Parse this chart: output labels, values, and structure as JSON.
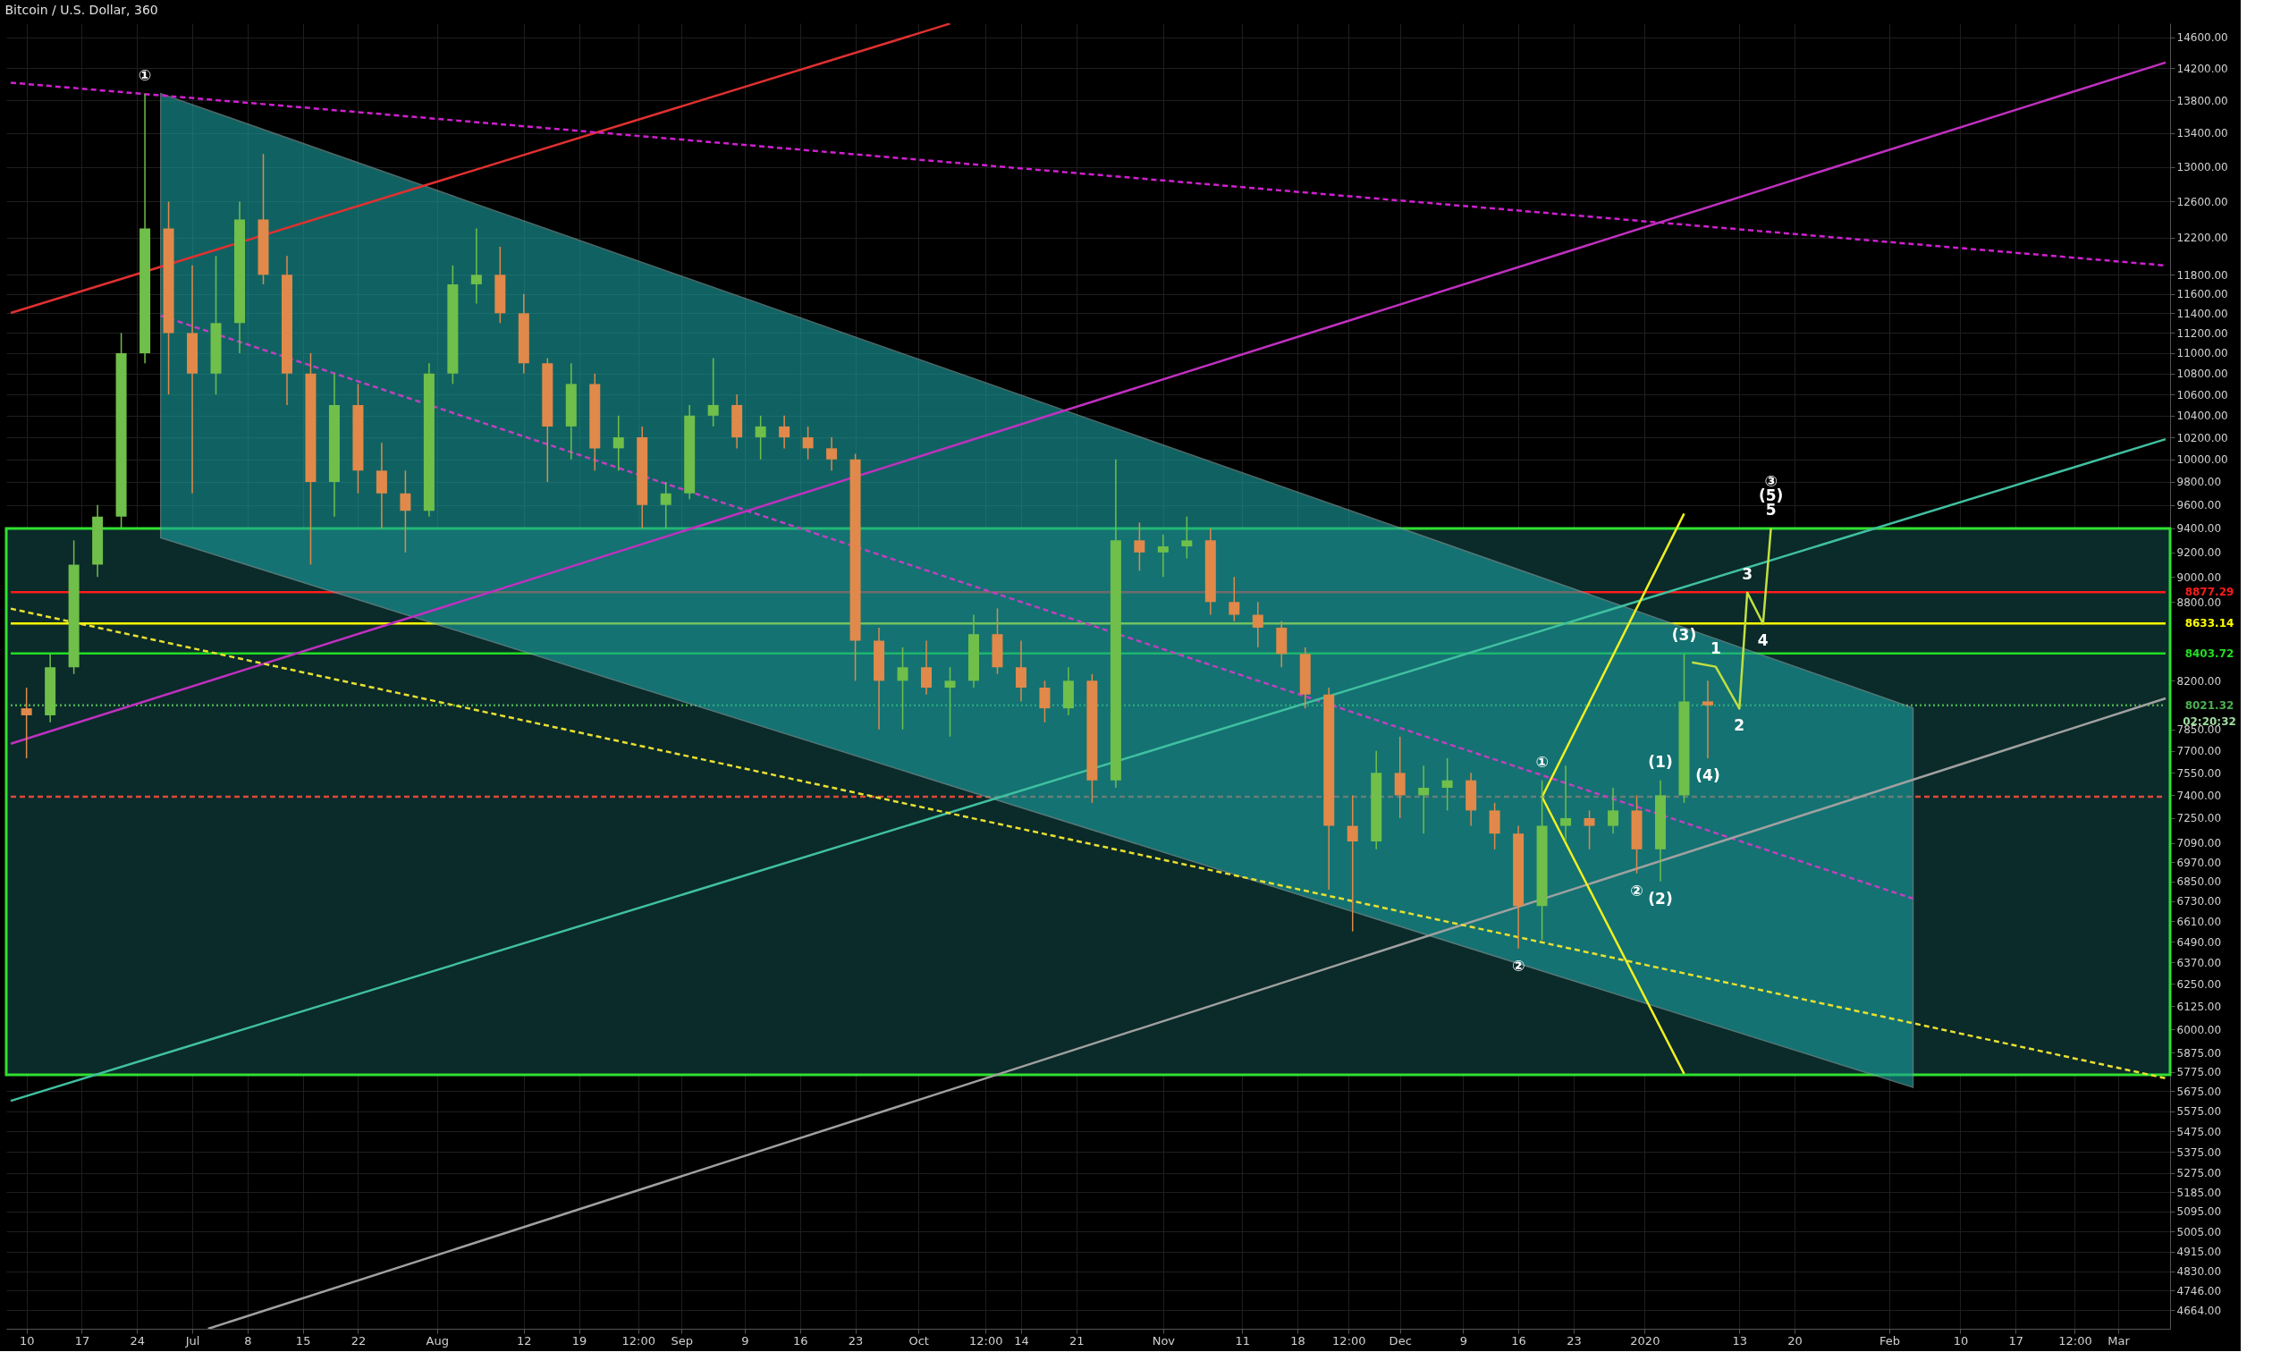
{
  "chart_data": {
    "type": "candlestick",
    "title": "Bitcoin / U.S. Dollar, 360",
    "x": [
      "2019-06-10",
      "2019-06-13",
      "2019-06-16",
      "2019-06-19",
      "2019-06-22",
      "2019-06-25",
      "2019-06-28",
      "2019-07-01",
      "2019-07-04",
      "2019-07-07",
      "2019-07-10",
      "2019-07-13",
      "2019-07-16",
      "2019-07-19",
      "2019-07-22",
      "2019-07-25",
      "2019-07-28",
      "2019-07-31",
      "2019-08-03",
      "2019-08-06",
      "2019-08-09",
      "2019-08-12",
      "2019-08-15",
      "2019-08-18",
      "2019-08-21",
      "2019-08-24",
      "2019-08-27",
      "2019-08-30",
      "2019-09-02",
      "2019-09-05",
      "2019-09-08",
      "2019-09-11",
      "2019-09-14",
      "2019-09-17",
      "2019-09-20",
      "2019-09-23",
      "2019-09-26",
      "2019-09-29",
      "2019-10-02",
      "2019-10-05",
      "2019-10-08",
      "2019-10-11",
      "2019-10-14",
      "2019-10-17",
      "2019-10-20",
      "2019-10-23",
      "2019-10-26",
      "2019-10-29",
      "2019-11-01",
      "2019-11-04",
      "2019-11-07",
      "2019-11-10",
      "2019-11-13",
      "2019-11-16",
      "2019-11-19",
      "2019-11-22",
      "2019-11-25",
      "2019-11-28",
      "2019-12-01",
      "2019-12-04",
      "2019-12-07",
      "2019-12-10",
      "2019-12-13",
      "2019-12-16",
      "2019-12-19",
      "2019-12-22",
      "2019-12-25",
      "2019-12-28",
      "2019-12-31",
      "2020-01-03",
      "2020-01-06",
      "2020-01-09"
    ],
    "ohlc": [
      [
        8000,
        8150,
        7650,
        7950
      ],
      [
        7950,
        8400,
        7900,
        8300
      ],
      [
        8300,
        9300,
        8250,
        9100
      ],
      [
        9100,
        9600,
        9000,
        9500
      ],
      [
        9500,
        11200,
        9400,
        11000
      ],
      [
        11000,
        13880,
        10900,
        12300
      ],
      [
        12300,
        12600,
        10600,
        11200
      ],
      [
        11200,
        11900,
        9700,
        10800
      ],
      [
        10800,
        12000,
        10600,
        11300
      ],
      [
        11300,
        12600,
        11000,
        12400
      ],
      [
        12400,
        13150,
        11700,
        11800
      ],
      [
        11800,
        12000,
        10500,
        10800
      ],
      [
        10800,
        11000,
        9100,
        9800
      ],
      [
        9800,
        10800,
        9500,
        10500
      ],
      [
        10500,
        10700,
        9700,
        9900
      ],
      [
        9900,
        10150,
        9400,
        9700
      ],
      [
        9700,
        9900,
        9200,
        9550
      ],
      [
        9550,
        10900,
        9500,
        10800
      ],
      [
        10800,
        11900,
        10700,
        11700
      ],
      [
        11700,
        12300,
        11500,
        11800
      ],
      [
        11800,
        12100,
        11300,
        11400
      ],
      [
        11400,
        11600,
        10800,
        10900
      ],
      [
        10900,
        10950,
        9800,
        10300
      ],
      [
        10300,
        10900,
        10000,
        10700
      ],
      [
        10700,
        10800,
        9900,
        10100
      ],
      [
        10100,
        10400,
        9900,
        10200
      ],
      [
        10200,
        10300,
        9400,
        9600
      ],
      [
        9600,
        9800,
        9400,
        9700
      ],
      [
        9700,
        10500,
        9650,
        10400
      ],
      [
        10400,
        10950,
        10300,
        10500
      ],
      [
        10500,
        10600,
        10100,
        10200
      ],
      [
        10200,
        10400,
        10000,
        10300
      ],
      [
        10300,
        10400,
        10100,
        10200
      ],
      [
        10200,
        10300,
        10000,
        10100
      ],
      [
        10100,
        10200,
        9900,
        10000
      ],
      [
        10000,
        10050,
        8200,
        8500
      ],
      [
        8500,
        8600,
        7850,
        8200
      ],
      [
        8200,
        8450,
        7850,
        8300
      ],
      [
        8300,
        8500,
        8100,
        8150
      ],
      [
        8150,
        8300,
        7800,
        8200
      ],
      [
        8200,
        8700,
        8150,
        8550
      ],
      [
        8550,
        8750,
        8250,
        8300
      ],
      [
        8300,
        8500,
        8050,
        8150
      ],
      [
        8150,
        8200,
        7900,
        8000
      ],
      [
        8000,
        8300,
        7950,
        8200
      ],
      [
        8200,
        8250,
        7350,
        7500
      ],
      [
        7500,
        10000,
        7450,
        9300
      ],
      [
        9300,
        9450,
        9050,
        9200
      ],
      [
        9200,
        9350,
        9000,
        9250
      ],
      [
        9250,
        9500,
        9150,
        9300
      ],
      [
        9300,
        9400,
        8700,
        8800
      ],
      [
        8800,
        9000,
        8650,
        8700
      ],
      [
        8700,
        8800,
        8450,
        8600
      ],
      [
        8600,
        8650,
        8300,
        8400
      ],
      [
        8400,
        8450,
        8000,
        8100
      ],
      [
        8100,
        8150,
        6800,
        7200
      ],
      [
        7200,
        7400,
        6550,
        7100
      ],
      [
        7100,
        7700,
        7050,
        7550
      ],
      [
        7550,
        7800,
        7250,
        7400
      ],
      [
        7400,
        7600,
        7150,
        7450
      ],
      [
        7450,
        7650,
        7300,
        7500
      ],
      [
        7500,
        7550,
        7200,
        7300
      ],
      [
        7300,
        7350,
        7050,
        7150
      ],
      [
        7150,
        7200,
        6450,
        6700
      ],
      [
        6700,
        7500,
        6500,
        7200
      ],
      [
        7200,
        7600,
        7100,
        7250
      ],
      [
        7250,
        7300,
        7050,
        7200
      ],
      [
        7200,
        7450,
        7150,
        7300
      ],
      [
        7300,
        7400,
        6900,
        7050
      ],
      [
        7050,
        7500,
        6850,
        7400
      ],
      [
        7400,
        8400,
        7350,
        8050
      ],
      [
        8050,
        8200,
        7650,
        8021.32
      ]
    ],
    "colors": [
      "#e0894a",
      "#6fbf4a",
      "#6fbf4a",
      "#6fbf4a",
      "#6fbf4a",
      "#6fbf4a",
      "#e0894a",
      "#e0894a",
      "#6fbf4a",
      "#6fbf4a",
      "#e0894a",
      "#e0894a",
      "#e0894a",
      "#6fbf4a",
      "#e0894a",
      "#e0894a",
      "#e0894a",
      "#6fbf4a",
      "#6fbf4a",
      "#6fbf4a",
      "#e0894a",
      "#e0894a",
      "#e0894a",
      "#6fbf4a",
      "#e0894a",
      "#6fbf4a",
      "#e0894a",
      "#6fbf4a",
      "#6fbf4a",
      "#6fbf4a",
      "#e0894a",
      "#6fbf4a",
      "#e0894a",
      "#e0894a",
      "#e0894a",
      "#e0894a",
      "#e0894a",
      "#6fbf4a",
      "#e0894a",
      "#6fbf4a",
      "#6fbf4a",
      "#e0894a",
      "#e0894a",
      "#e0894a",
      "#6fbf4a",
      "#e0894a",
      "#6fbf4a",
      "#e0894a",
      "#6fbf4a",
      "#6fbf4a",
      "#e0894a",
      "#e0894a",
      "#e0894a",
      "#e0894a",
      "#e0894a",
      "#e0894a",
      "#e0894a",
      "#6fbf4a",
      "#e0894a",
      "#6fbf4a",
      "#6fbf4a",
      "#e0894a",
      "#e0894a",
      "#e0894a",
      "#6fbf4a",
      "#6fbf4a",
      "#e0894a",
      "#6fbf4a",
      "#e0894a",
      "#6fbf4a",
      "#6fbf4a",
      "#e0894a"
    ],
    "series": [
      {
        "type": "line",
        "color": "#c040c0",
        "line_style": "dashed",
        "x": [
          "2019-06-27",
          "2020-02-04"
        ],
        "values": [
          11376,
          6745
        ],
        "lower": [
          9322,
          5696
        ],
        "upper": [
          13882,
          8003
        ]
      },
      {
        "type": "line",
        "color": "#e03030",
        "line_style": "solid",
        "x": [
          "2019-06-08",
          "2019-10-05"
        ],
        "values": [
          11403,
          14780
        ]
      },
      {
        "type": "line",
        "color": "#d020d0",
        "line_style": "dashed",
        "x": [
          "2019-06-08",
          "2020-03-07"
        ],
        "values": [
          14018,
          11899
        ]
      },
      {
        "type": "line",
        "color": "#c030c0",
        "line_style": "solid",
        "x": [
          "2019-06-08",
          "2020-03-07"
        ],
        "values": [
          7750,
          14274
        ]
      },
      {
        "type": "line",
        "color": "#40c0a0",
        "line_style": "solid",
        "x": [
          "2019-06-08",
          "2020-03-07"
        ],
        "values": [
          5627,
          10183
        ]
      },
      {
        "type": "line",
        "color": "#a0a0a0",
        "line_style": "solid",
        "x": [
          "2019-07-03",
          "2020-03-07"
        ],
        "values": [
          4587,
          8072
        ]
      },
      {
        "type": "line",
        "color": "#e8e030",
        "line_style": "dashed",
        "x": [
          "2019-06-08",
          "2020-03-07"
        ],
        "values": [
          8748,
          5742
        ]
      },
      {
        "type": "line",
        "color": "#f0f020",
        "line_style": "solid",
        "x": [
          "2020-01-06",
          "2019-12-19",
          "2020-01-06"
        ],
        "values": [
          9526,
          7389,
          5765
        ]
      },
      {
        "type": "line",
        "color": "#c0e040",
        "line_style": "solid",
        "x": [
          "2020-01-07",
          "2020-01-10",
          "2020-01-13",
          "2020-01-14",
          "2020-01-16",
          "2020-01-17"
        ],
        "values": [
          8336,
          8304,
          7998,
          8875,
          8631,
          9402
        ]
      }
    ],
    "bands": [
      {
        "axis": "y",
        "from": 5760,
        "to": 9400,
        "color": "#0b2a2a"
      }
    ],
    "ref_lines": [
      {
        "axis": "y",
        "value": 8877.29,
        "label": "8877.29",
        "color": "#ff1a1a",
        "line_style": "solid"
      },
      {
        "axis": "y",
        "value": 8633.14,
        "label": "8633.14",
        "color": "#ffff00",
        "line_style": "solid"
      },
      {
        "axis": "y",
        "value": 8403.72,
        "label": "8403.72",
        "color": "#22dd22",
        "line_style": "solid"
      },
      {
        "axis": "y",
        "value": 8021.32,
        "label": "8021.32",
        "color": "#4caf50",
        "line_style": "dotted"
      },
      {
        "axis": "y",
        "value": 7390,
        "label": null,
        "color": "#e04a3a",
        "line_style": "dashed"
      }
    ],
    "annotations": [
      {
        "text": "①",
        "x": "2019-06-25",
        "y": 13880
      },
      {
        "text": "②",
        "x": "2019-12-16",
        "y": 6450
      },
      {
        "text": "①",
        "x": "2019-12-19",
        "y": 7500
      },
      {
        "text": "②",
        "x": "2019-12-31",
        "y": 6900
      },
      {
        "text": "(1)",
        "x": "2020-01-03",
        "y": 7500
      },
      {
        "text": "(2)",
        "x": "2020-01-03",
        "y": 6850
      },
      {
        "text": "(3)",
        "x": "2020-01-06",
        "y": 8400
      },
      {
        "text": "(4)",
        "x": "2020-01-09",
        "y": 7650
      },
      {
        "text": "1",
        "x": "2020-01-10",
        "y": 8304
      },
      {
        "text": "2",
        "x": "2020-01-13",
        "y": 7998
      },
      {
        "text": "3",
        "x": "2020-01-14",
        "y": 8875
      },
      {
        "text": "4",
        "x": "2020-01-16",
        "y": 8631
      },
      {
        "text": "5",
        "x": "2020-01-17",
        "y": 9402
      },
      {
        "text": "(5)",
        "x": "2020-01-17",
        "y": 9402
      },
      {
        "text": "③",
        "x": "2020-01-17",
        "y": 9402
      },
      "02:20:32"
    ],
    "xlim": [
      "2019-06-08",
      "2020-03-07"
    ],
    "xticks": [
      {
        "value": "2019-06-10",
        "label": "10"
      },
      {
        "value": "2019-06-17",
        "label": "17"
      },
      {
        "value": "2019-06-24",
        "label": "24"
      },
      {
        "value": "2019-07-01",
        "label": "Jul"
      },
      {
        "value": "2019-07-08",
        "label": "8"
      },
      {
        "value": "2019-07-15",
        "label": "15"
      },
      {
        "value": "2019-07-22",
        "label": "22"
      },
      {
        "value": "2019-08-01",
        "label": "Aug"
      },
      {
        "value": "2019-08-12",
        "label": "12"
      },
      {
        "value": "2019-08-19",
        "label": "19"
      },
      {
        "value": "2019-08-26T12:00",
        "label": "12:00"
      },
      {
        "value": "2019-09-01",
        "label": "Sep"
      },
      {
        "value": "2019-09-09",
        "label": "9"
      },
      {
        "value": "2019-09-16",
        "label": "16"
      },
      {
        "value": "2019-09-23",
        "label": "23"
      },
      {
        "value": "2019-10-01",
        "label": "Oct"
      },
      {
        "value": "2019-10-09T12:00",
        "label": "12:00"
      },
      {
        "value": "2019-10-14",
        "label": "14"
      },
      {
        "value": "2019-10-21",
        "label": "21"
      },
      {
        "value": "2019-11-01",
        "label": "Nov"
      },
      {
        "value": "2019-11-11",
        "label": "11"
      },
      {
        "value": "2019-11-18",
        "label": "18"
      },
      {
        "value": "2019-11-24T12:00",
        "label": "12:00"
      },
      {
        "value": "2019-12-01",
        "label": "Dec"
      },
      {
        "value": "2019-12-09",
        "label": "9"
      },
      {
        "value": "2019-12-16",
        "label": "16"
      },
      {
        "value": "2019-12-23",
        "label": "23"
      },
      {
        "value": "2020-01-01",
        "label": "2020"
      },
      {
        "value": "2020-01-13",
        "label": "13"
      },
      {
        "value": "2020-01-20",
        "label": "20"
      },
      {
        "value": "2020-02-01",
        "label": "Feb"
      },
      {
        "value": "2020-02-10",
        "label": "10"
      },
      {
        "value": "2020-02-17",
        "label": "17"
      },
      {
        "value": "2020-02-24T12:00",
        "label": "12:00"
      },
      {
        "value": "2020-03-01",
        "label": "Mar"
      }
    ],
    "ylim": [
      4587,
      14785
    ],
    "yticks": [
      {
        "value": 14600,
        "label": "14600.00"
      },
      {
        "value": 14200,
        "label": "14200.00"
      },
      {
        "value": 13800,
        "label": "13800.00"
      },
      {
        "value": 13400,
        "label": "13400.00"
      },
      {
        "value": 13000,
        "label": "13000.00"
      },
      {
        "value": 12600,
        "label": "12600.00"
      },
      {
        "value": 12200,
        "label": "12200.00"
      },
      {
        "value": 11800,
        "label": "11800.00"
      },
      {
        "value": 11600,
        "label": "11600.00"
      },
      {
        "value": 11400,
        "label": "11400.00"
      },
      {
        "value": 11200,
        "label": "11200.00"
      },
      {
        "value": 11000,
        "label": "11000.00"
      },
      {
        "value": 10800,
        "label": "10800.00"
      },
      {
        "value": 10600,
        "label": "10600.00"
      },
      {
        "value": 10400,
        "label": "10400.00"
      },
      {
        "value": 10200,
        "label": "10200.00"
      },
      {
        "value": 10000,
        "label": "10000.00"
      },
      {
        "value": 9800,
        "label": "9800.00"
      },
      {
        "value": 9600,
        "label": "9600.00"
      },
      {
        "value": 9400,
        "label": "9400.00"
      },
      {
        "value": 9200,
        "label": "9200.00"
      },
      {
        "value": 9000,
        "label": "9000.00"
      },
      {
        "value": 8800,
        "label": "8800.00"
      },
      {
        "value": 8200,
        "label": "8200.00"
      },
      {
        "value": 7850,
        "label": "7850.00"
      },
      {
        "value": 7700,
        "label": "7700.00"
      },
      {
        "value": 7550,
        "label": "7550.00"
      },
      {
        "value": 7400,
        "label": "7400.00"
      },
      {
        "value": 7250,
        "label": "7250.00"
      },
      {
        "value": 7090,
        "label": "7090.00"
      },
      {
        "value": 6970,
        "label": "6970.00"
      },
      {
        "value": 6850,
        "label": "6850.00"
      },
      {
        "value": 6730,
        "label": "6730.00"
      },
      {
        "value": 6610,
        "label": "6610.00"
      },
      {
        "value": 6490,
        "label": "6490.00"
      },
      {
        "value": 6370,
        "label": "6370.00"
      },
      {
        "value": 6250,
        "label": "6250.00"
      },
      {
        "value": 6125,
        "label": "6125.00"
      },
      {
        "value": 6000,
        "label": "6000.00"
      },
      {
        "value": 5875,
        "label": "5875.00"
      },
      {
        "value": 5775,
        "label": "5775.00"
      },
      {
        "value": 5675,
        "label": "5675.00"
      },
      {
        "value": 5575,
        "label": "5575.00"
      },
      {
        "value": 5475,
        "label": "5475.00"
      },
      {
        "value": 5375,
        "label": "5375.00"
      },
      {
        "value": 5275,
        "label": "5275.00"
      },
      {
        "value": 5185,
        "label": "5185.00"
      },
      {
        "value": 5095,
        "label": "5095.00"
      },
      {
        "value": 5005,
        "label": "5005.00"
      },
      {
        "value": 4915,
        "label": "4915.00"
      },
      {
        "value": 4830,
        "label": "4830.00"
      },
      {
        "value": 4746,
        "label": "4746.00"
      },
      {
        "value": 4664,
        "label": "4664.00"
      }
    ],
    "log": true,
    "grid": true
  }
}
